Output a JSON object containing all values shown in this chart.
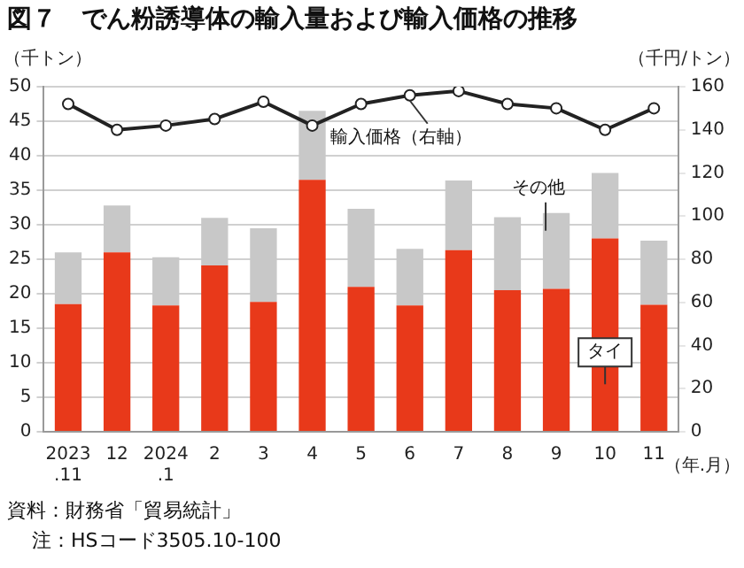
{
  "chart_data": {
    "type": "bar",
    "title": "図７　でん粉誘導体の輸入量および輸入価格の推移",
    "ylabel": "（千トン）",
    "y2label": "（千円/トン）",
    "xlabel": "（年.月）",
    "categories": [
      "2023\n.11",
      "12",
      "2024\n.1",
      "2",
      "3",
      "4",
      "5",
      "6",
      "7",
      "8",
      "9",
      "10",
      "11"
    ],
    "series": [
      {
        "name": "タイ",
        "color": "#e8391a",
        "values": [
          18.5,
          26,
          18.3,
          24.1,
          18.8,
          36.5,
          21,
          18.3,
          26.3,
          20.5,
          20.7,
          28,
          18.4
        ]
      },
      {
        "name": "その他",
        "color": "#c8c8c8",
        "values": [
          7.5,
          6.8,
          7,
          6.9,
          10.7,
          10,
          11.3,
          8.2,
          10.1,
          10.6,
          11,
          9.5,
          9.3
        ]
      },
      {
        "name": "輸入価格（右軸）",
        "type": "line",
        "axis": "y2",
        "color": "#222222",
        "values": [
          152,
          140,
          142,
          145,
          153,
          142,
          152,
          156,
          158,
          152,
          150,
          140,
          150
        ]
      }
    ],
    "stacked": true,
    "ylim": [
      0,
      50
    ],
    "yticks": [
      0,
      5,
      10,
      15,
      20,
      25,
      30,
      35,
      40,
      45,
      50
    ],
    "y2lim": [
      0,
      160
    ],
    "y2ticks": [
      0,
      20,
      40,
      60,
      80,
      100,
      120,
      140,
      160
    ],
    "grid": "y",
    "legend": false,
    "marker": "circle",
    "line_style": "solid",
    "annotations": [
      "資料：財務省「貿易統計」",
      "注：HSコード3505.10-100"
    ]
  }
}
